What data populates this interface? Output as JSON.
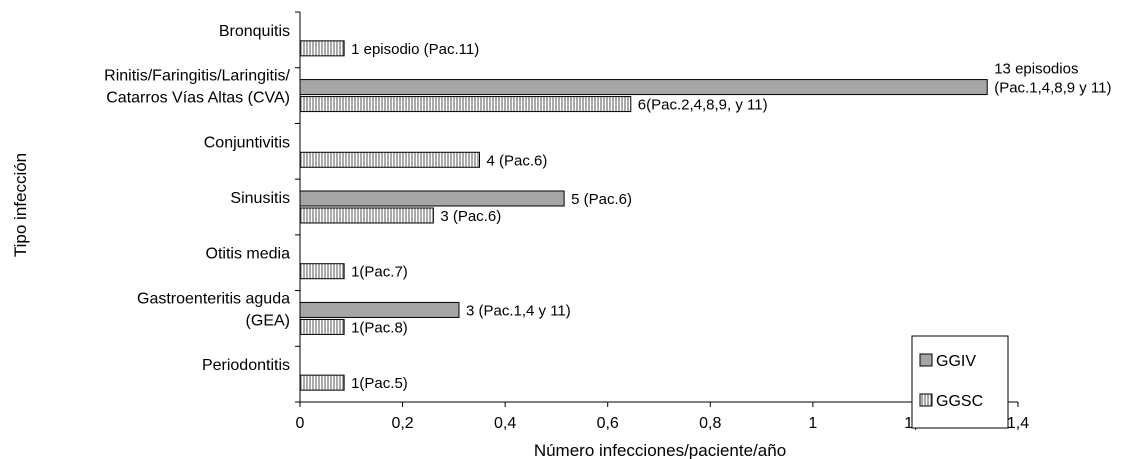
{
  "chart_data": {
    "type": "bar",
    "orientation": "horizontal",
    "ylabel": "Tipo infección",
    "xlabel": "Número infecciones/paciente/año",
    "xlim": [
      0,
      1.4
    ],
    "x_ticks": [
      "0",
      "0,2",
      "0,4",
      "0,6",
      "0,8",
      "1",
      "1,2",
      "1,4"
    ],
    "x_tick_values": [
      0,
      0.2,
      0.4,
      0.6,
      0.8,
      1.0,
      1.2,
      1.4
    ],
    "grid": false,
    "legend_position": "bottom-right",
    "categories": [
      {
        "label_lines": [
          "Bronquitis"
        ]
      },
      {
        "label_lines": [
          "Rinitis/Faringitis/Laringitis/",
          "Catarros Vías Altas (CVA)"
        ]
      },
      {
        "label_lines": [
          "Conjuntivitis"
        ]
      },
      {
        "label_lines": [
          "Sinusitis"
        ]
      },
      {
        "label_lines": [
          "Otitis media"
        ]
      },
      {
        "label_lines": [
          "Gastroenteritis aguda",
          "(GEA)"
        ]
      },
      {
        "label_lines": [
          "Periodontitis"
        ]
      }
    ],
    "series": [
      {
        "name": "GGIV",
        "color": "#a6a6a6",
        "pattern": "solid",
        "values": [
          null,
          1.34,
          null,
          0.515,
          null,
          0.31,
          null
        ],
        "labels": [
          null,
          [
            "13 episodios",
            "(Pac.1,4,8,9 y 11)"
          ],
          null,
          [
            "5 (Pac.6)"
          ],
          null,
          [
            "3 (Pac.1,4 y 11)"
          ],
          null
        ]
      },
      {
        "name": "GGSC",
        "color": "#ffffff",
        "pattern": "vertical-lines",
        "values": [
          0.086,
          0.645,
          0.35,
          0.26,
          0.086,
          0.086,
          0.086
        ],
        "labels": [
          [
            "1 episodio (Pac.11)"
          ],
          [
            "6(Pac.2,4,8,9, y 11)"
          ],
          [
            "4 (Pac.6)"
          ],
          [
            "3 (Pac.6)"
          ],
          [
            "1(Pac.7)"
          ],
          [
            "1(Pac.8)"
          ],
          [
            "1(Pac.5)"
          ]
        ]
      }
    ]
  }
}
